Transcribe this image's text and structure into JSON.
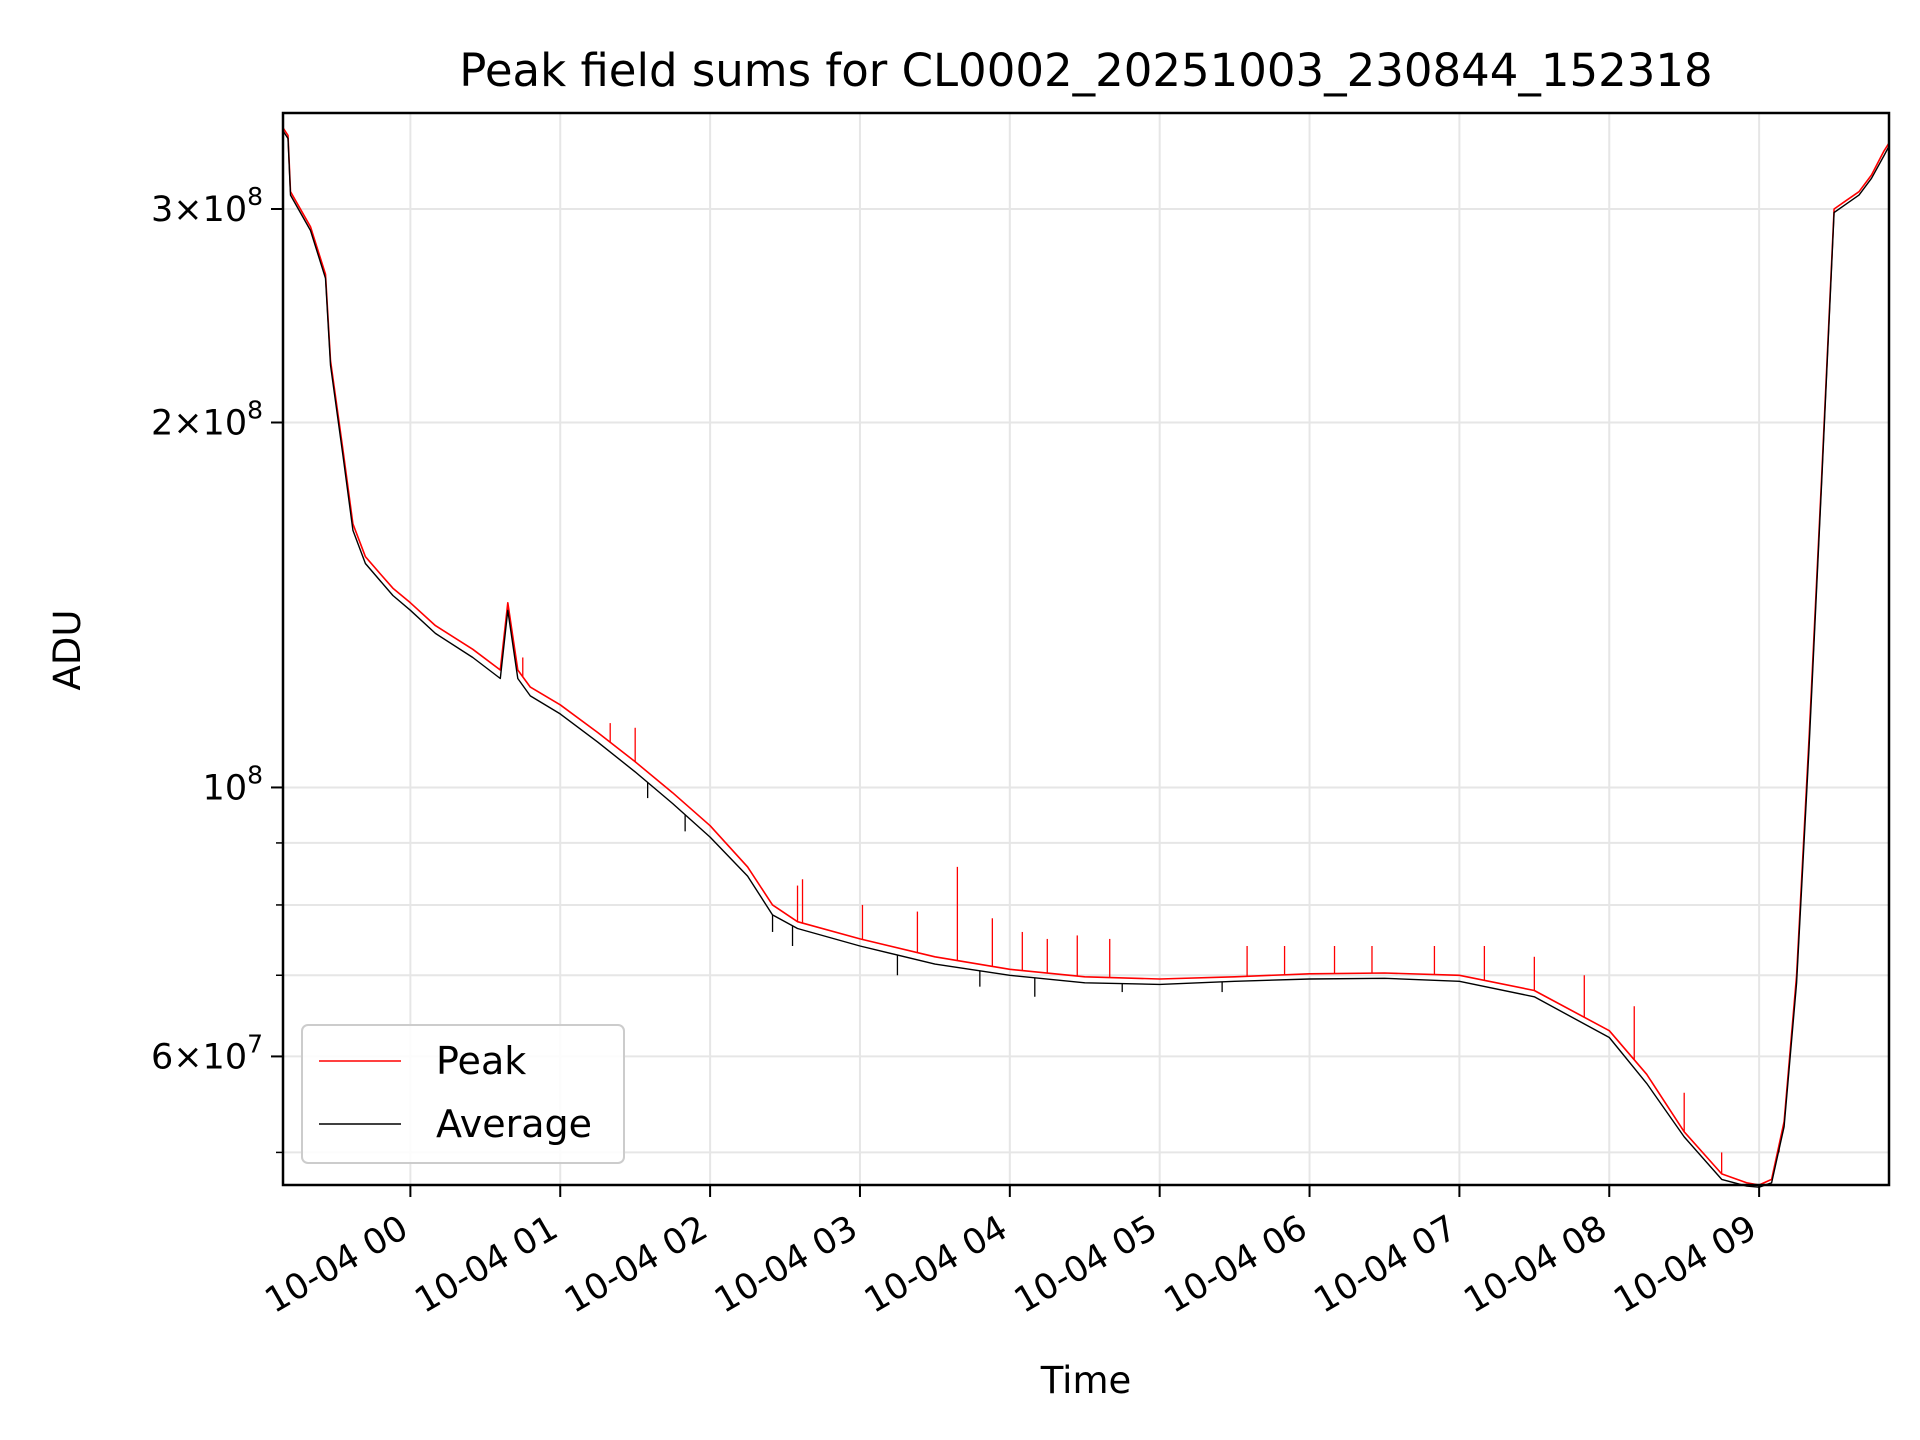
{
  "chart_data": {
    "type": "line",
    "title": "Peak field sums for CL0002_20251003_230844_152318",
    "xlabel": "Time",
    "ylabel": "ADU",
    "yscale": "log",
    "ylim": [
      47000000,
      360000000
    ],
    "xlim": [
      "2025-10-03T23:09:00",
      "2025-10-04T09:52:00"
    ],
    "grid": true,
    "legend_position": "lower left",
    "x_ticks": [
      {
        "t": "2025-10-04T00:00:00",
        "label": "10-04 00"
      },
      {
        "t": "2025-10-04T01:00:00",
        "label": "10-04 01"
      },
      {
        "t": "2025-10-04T02:00:00",
        "label": "10-04 02"
      },
      {
        "t": "2025-10-04T03:00:00",
        "label": "10-04 03"
      },
      {
        "t": "2025-10-04T04:00:00",
        "label": "10-04 04"
      },
      {
        "t": "2025-10-04T05:00:00",
        "label": "10-04 05"
      },
      {
        "t": "2025-10-04T06:00:00",
        "label": "10-04 06"
      },
      {
        "t": "2025-10-04T07:00:00",
        "label": "10-04 07"
      },
      {
        "t": "2025-10-04T08:00:00",
        "label": "10-04 08"
      },
      {
        "t": "2025-10-04T09:00:00",
        "label": "10-04 09"
      }
    ],
    "y_major_ticks": [
      {
        "value": 60000000,
        "mant": "6",
        "exp": "7"
      },
      {
        "value": 100000000,
        "mant": "",
        "exp": "8"
      },
      {
        "value": 200000000,
        "mant": "2",
        "exp": "8"
      },
      {
        "value": 300000000,
        "mant": "3",
        "exp": "8"
      }
    ],
    "y_minor_ticks": [
      50000000,
      70000000,
      80000000,
      90000000
    ],
    "series": [
      {
        "name": "Peak",
        "color": "#ff0000",
        "x": [
          "2025-10-03T23:09:00",
          "2025-10-03T23:11:00",
          "2025-10-03T23:12:00",
          "2025-10-03T23:20:00",
          "2025-10-03T23:26:00",
          "2025-10-03T23:28:00",
          "2025-10-03T23:33:00",
          "2025-10-03T23:37:00",
          "2025-10-03T23:42:00",
          "2025-10-03T23:48:00",
          "2025-10-03T23:53:00",
          "2025-10-04T00:00:00",
          "2025-10-04T00:10:00",
          "2025-10-04T00:25:00",
          "2025-10-04T00:36:00",
          "2025-10-04T00:39:00",
          "2025-10-04T00:43:00",
          "2025-10-04T00:48:00",
          "2025-10-04T01:00:00",
          "2025-10-04T01:15:00",
          "2025-10-04T01:30:00",
          "2025-10-04T01:45:00",
          "2025-10-04T02:00:00",
          "2025-10-04T02:15:00",
          "2025-10-04T02:25:00",
          "2025-10-04T02:35:00",
          "2025-10-04T03:00:00",
          "2025-10-04T03:30:00",
          "2025-10-04T04:00:00",
          "2025-10-04T04:30:00",
          "2025-10-04T05:00:00",
          "2025-10-04T05:30:00",
          "2025-10-04T06:00:00",
          "2025-10-04T06:30:00",
          "2025-10-04T07:00:00",
          "2025-10-04T07:30:00",
          "2025-10-04T08:00:00",
          "2025-10-04T08:15:00",
          "2025-10-04T08:30:00",
          "2025-10-04T08:45:00",
          "2025-10-04T08:55:00",
          "2025-10-04T09:00:00",
          "2025-10-04T09:05:00",
          "2025-10-04T09:10:00",
          "2025-10-04T09:15:00",
          "2025-10-04T09:20:00",
          "2025-10-04T09:25:00",
          "2025-10-04T09:30:00",
          "2025-10-04T09:35:00",
          "2025-10-04T09:40:00",
          "2025-10-04T09:45:00",
          "2025-10-04T09:50:00",
          "2025-10-04T09:52:00"
        ],
        "values": [
          350000000,
          345000000,
          310000000,
          290000000,
          265000000,
          225000000,
          190000000,
          165000000,
          155000000,
          150000000,
          146000000,
          142000000,
          136000000,
          130000000,
          125000000,
          142000000,
          125000000,
          121000000,
          117000000,
          111000000,
          105000000,
          99000000,
          93000000,
          86000000,
          80000000,
          77500000,
          75000000,
          72500000,
          70800000,
          69800000,
          69500000,
          69800000,
          70200000,
          70300000,
          70000000,
          68000000,
          63000000,
          58000000,
          52000000,
          48000000,
          47200000,
          47000000,
          47500000,
          53000000,
          70000000,
          110000000,
          180000000,
          300000000,
          305000000,
          310000000,
          320000000,
          335000000,
          340000000
        ],
        "spikes": [
          {
            "x": "2025-10-04T00:45:00",
            "value": 128000000
          },
          {
            "x": "2025-10-04T01:20:00",
            "value": 113000000
          },
          {
            "x": "2025-10-04T01:30:00",
            "value": 112000000
          },
          {
            "x": "2025-10-04T02:35:00",
            "value": 83000000
          },
          {
            "x": "2025-10-04T02:37:00",
            "value": 84000000
          },
          {
            "x": "2025-10-04T03:01:00",
            "value": 80000000
          },
          {
            "x": "2025-10-04T03:23:00",
            "value": 79000000
          },
          {
            "x": "2025-10-04T03:39:00",
            "value": 86000000
          },
          {
            "x": "2025-10-04T03:53:00",
            "value": 78000000
          },
          {
            "x": "2025-10-04T04:05:00",
            "value": 76000000
          },
          {
            "x": "2025-10-04T04:15:00",
            "value": 75000000
          },
          {
            "x": "2025-10-04T04:27:00",
            "value": 75500000
          },
          {
            "x": "2025-10-04T04:40:00",
            "value": 75000000
          },
          {
            "x": "2025-10-04T05:35:00",
            "value": 74000000
          },
          {
            "x": "2025-10-04T05:50:00",
            "value": 74000000
          },
          {
            "x": "2025-10-04T06:10:00",
            "value": 74000000
          },
          {
            "x": "2025-10-04T06:25:00",
            "value": 74000000
          },
          {
            "x": "2025-10-04T06:50:00",
            "value": 74000000
          },
          {
            "x": "2025-10-04T07:10:00",
            "value": 74000000
          },
          {
            "x": "2025-10-04T07:30:00",
            "value": 72500000
          },
          {
            "x": "2025-10-04T07:50:00",
            "value": 70000000
          },
          {
            "x": "2025-10-04T08:10:00",
            "value": 66000000
          },
          {
            "x": "2025-10-04T08:30:00",
            "value": 56000000
          },
          {
            "x": "2025-10-04T08:45:00",
            "value": 50000000
          },
          {
            "x": "2025-10-04T09:08:00",
            "value": 50000000
          }
        ]
      },
      {
        "name": "Average",
        "color": "#000000",
        "x": [
          "2025-10-03T23:09:00",
          "2025-10-03T23:11:00",
          "2025-10-03T23:12:00",
          "2025-10-03T23:20:00",
          "2025-10-03T23:26:00",
          "2025-10-03T23:28:00",
          "2025-10-03T23:33:00",
          "2025-10-03T23:37:00",
          "2025-10-03T23:42:00",
          "2025-10-03T23:48:00",
          "2025-10-03T23:53:00",
          "2025-10-04T00:00:00",
          "2025-10-04T00:10:00",
          "2025-10-04T00:25:00",
          "2025-10-04T00:36:00",
          "2025-10-04T00:39:00",
          "2025-10-04T00:43:00",
          "2025-10-04T00:48:00",
          "2025-10-04T01:00:00",
          "2025-10-04T01:15:00",
          "2025-10-04T01:30:00",
          "2025-10-04T01:45:00",
          "2025-10-04T02:00:00",
          "2025-10-04T02:15:00",
          "2025-10-04T02:25:00",
          "2025-10-04T02:35:00",
          "2025-10-04T03:00:00",
          "2025-10-04T03:30:00",
          "2025-10-04T04:00:00",
          "2025-10-04T04:30:00",
          "2025-10-04T05:00:00",
          "2025-10-04T05:30:00",
          "2025-10-04T06:00:00",
          "2025-10-04T06:30:00",
          "2025-10-04T07:00:00",
          "2025-10-04T07:30:00",
          "2025-10-04T08:00:00",
          "2025-10-04T08:15:00",
          "2025-10-04T08:30:00",
          "2025-10-04T08:45:00",
          "2025-10-04T08:55:00",
          "2025-10-04T09:00:00",
          "2025-10-04T09:05:00",
          "2025-10-04T09:10:00",
          "2025-10-04T09:15:00",
          "2025-10-04T09:20:00",
          "2025-10-04T09:25:00",
          "2025-10-04T09:30:00",
          "2025-10-04T09:35:00",
          "2025-10-04T09:40:00",
          "2025-10-04T09:45:00",
          "2025-10-04T09:50:00",
          "2025-10-04T09:52:00"
        ],
        "values": [
          348000000,
          343000000,
          308000000,
          288000000,
          263000000,
          223000000,
          188000000,
          163000000,
          153000000,
          148000000,
          144000000,
          140000000,
          134000000,
          128000000,
          123000000,
          140000000,
          123000000,
          119000000,
          115000000,
          109000000,
          103000000,
          97000000,
          91000000,
          84500000,
          78500000,
          76500000,
          74000000,
          71500000,
          70000000,
          69000000,
          68800000,
          69200000,
          69500000,
          69600000,
          69200000,
          67200000,
          62200000,
          57000000,
          51500000,
          47500000,
          46900000,
          46800000,
          47200000,
          52500000,
          69000000,
          108000000,
          178000000,
          298000000,
          303000000,
          308000000,
          318000000,
          332000000,
          338000000
        ],
        "dips": [
          {
            "x": "2025-10-04T01:35:00",
            "value": 98000000
          },
          {
            "x": "2025-10-04T01:50:00",
            "value": 92000000
          },
          {
            "x": "2025-10-04T02:25:00",
            "value": 76000000
          },
          {
            "x": "2025-10-04T02:33:00",
            "value": 74000000
          },
          {
            "x": "2025-10-04T03:15:00",
            "value": 70000000
          },
          {
            "x": "2025-10-04T03:48:00",
            "value": 68500000
          },
          {
            "x": "2025-10-04T04:10:00",
            "value": 67200000
          },
          {
            "x": "2025-10-04T04:45:00",
            "value": 67800000
          },
          {
            "x": "2025-10-04T05:25:00",
            "value": 67800000
          }
        ]
      }
    ]
  }
}
